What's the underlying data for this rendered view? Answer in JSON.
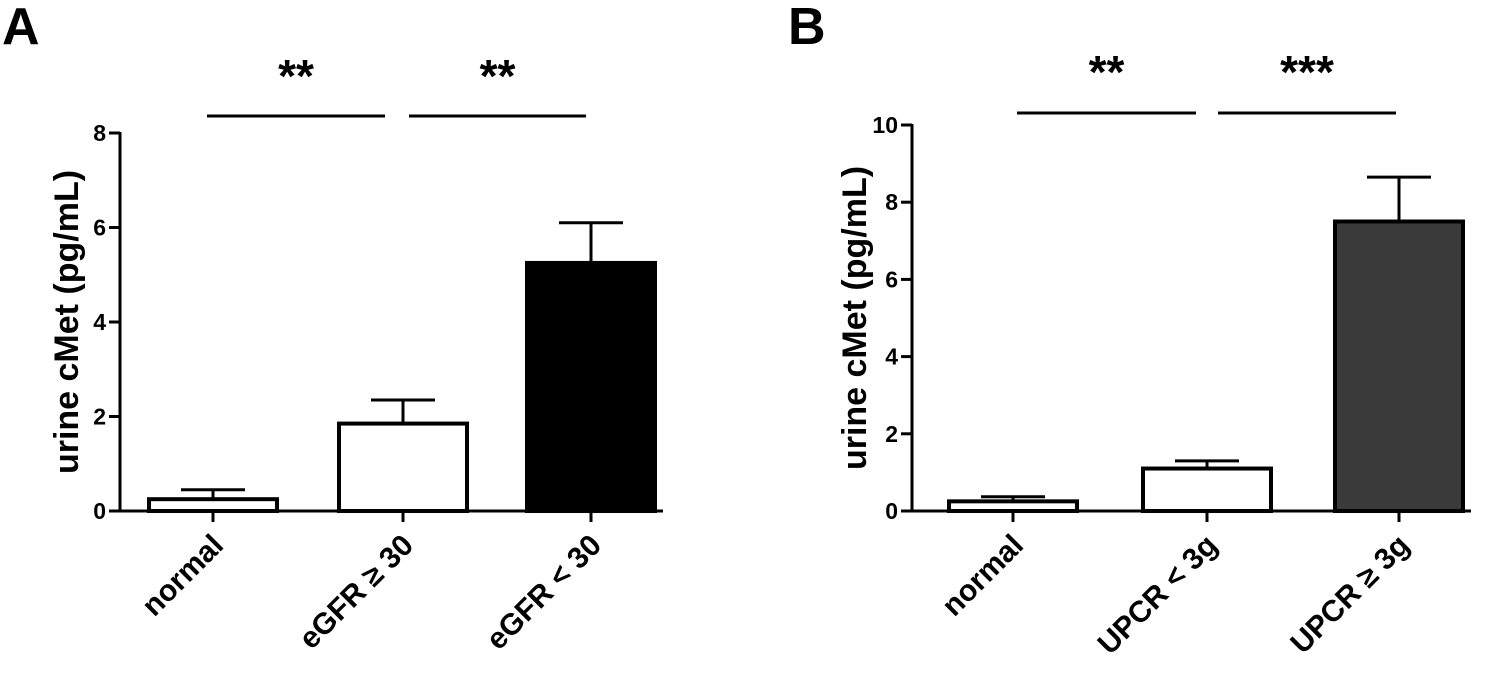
{
  "chart_data": [
    {
      "type": "bar",
      "panel_label": "A",
      "ylabel": "urine cMet  (pg/mL)",
      "xlabel": "",
      "ylim": [
        0,
        8
      ],
      "yticks": [
        "0",
        "2",
        "4",
        "6",
        "8"
      ],
      "categories": [
        "normal",
        "eGFR  ≥ 30",
        "eGFR < 30"
      ],
      "values": [
        0.25,
        1.85,
        5.25
      ],
      "errors": [
        0.2,
        0.5,
        0.85
      ],
      "colors": [
        "#ffffff",
        "#ffffff",
        "#000000"
      ],
      "significance": [
        {
          "label": "**",
          "from": 0,
          "to": 1
        },
        {
          "label": "**",
          "from": 1,
          "to": 2
        }
      ]
    },
    {
      "type": "bar",
      "panel_label": "B",
      "ylabel": "urine cMet (pg/mL)",
      "xlabel": "",
      "ylim": [
        0,
        10
      ],
      "yticks": [
        "0",
        "2",
        "4",
        "6",
        "8",
        "10"
      ],
      "categories": [
        "normal",
        "UPCR < 3g",
        "UPCR ≥ 3g"
      ],
      "values": [
        0.25,
        1.1,
        7.5
      ],
      "errors": [
        0.12,
        0.2,
        1.15
      ],
      "colors": [
        "#ffffff",
        "#ffffff",
        "#3a3a3a"
      ],
      "significance": [
        {
          "label": "**",
          "from": 0,
          "to": 1
        },
        {
          "label": "***",
          "from": 1,
          "to": 2
        }
      ]
    }
  ]
}
